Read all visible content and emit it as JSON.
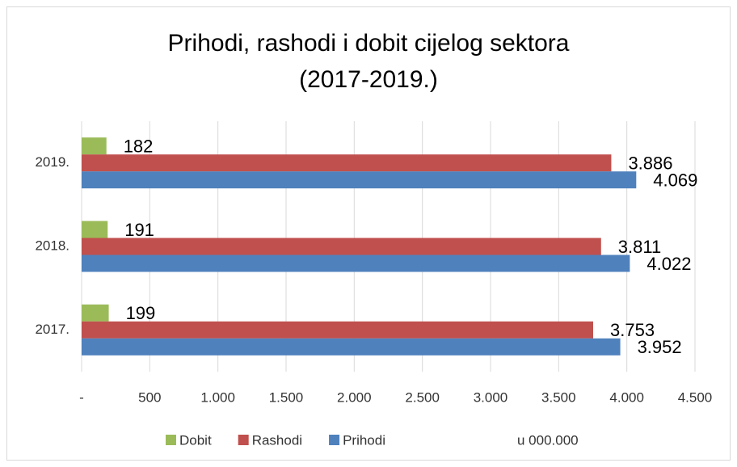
{
  "chart_data": {
    "type": "bar",
    "orientation": "horizontal",
    "title": [
      "Prihodi, rashodi i dobit cijelog sektora",
      "(2017-2019.)"
    ],
    "categories": [
      "2017.",
      "2018.",
      "2019."
    ],
    "series": [
      {
        "name": "Dobit",
        "color": "#9bbb59",
        "values": [
          199,
          191,
          182
        ]
      },
      {
        "name": "Rashodi",
        "color": "#c0504d",
        "values": [
          3753,
          3811,
          3886
        ],
        "value_labels": [
          "3.753",
          "3.811",
          "3.886"
        ]
      },
      {
        "name": "Prihodi",
        "color": "#4f81bd",
        "values": [
          3952,
          4022,
          4069
        ],
        "value_labels": [
          "3.952",
          "4.022",
          "4.069"
        ]
      }
    ],
    "xlim": [
      0,
      4500
    ],
    "xticks": [
      {
        "value": 0,
        "label": "-"
      },
      500,
      {
        "value": 1000,
        "label": "1.000"
      },
      {
        "value": 1500,
        "label": "1.500"
      },
      {
        "value": 2000,
        "label": "2.000"
      },
      {
        "value": 2500,
        "label": "2.500"
      },
      {
        "value": 3000,
        "label": "3.000"
      },
      {
        "value": 3500,
        "label": "3.500"
      },
      {
        "value": 4000,
        "label": "4.000"
      },
      {
        "value": 4500,
        "label": "4.500"
      }
    ],
    "grid": true,
    "legend": "bottom",
    "unit_label": "u 000.000"
  }
}
